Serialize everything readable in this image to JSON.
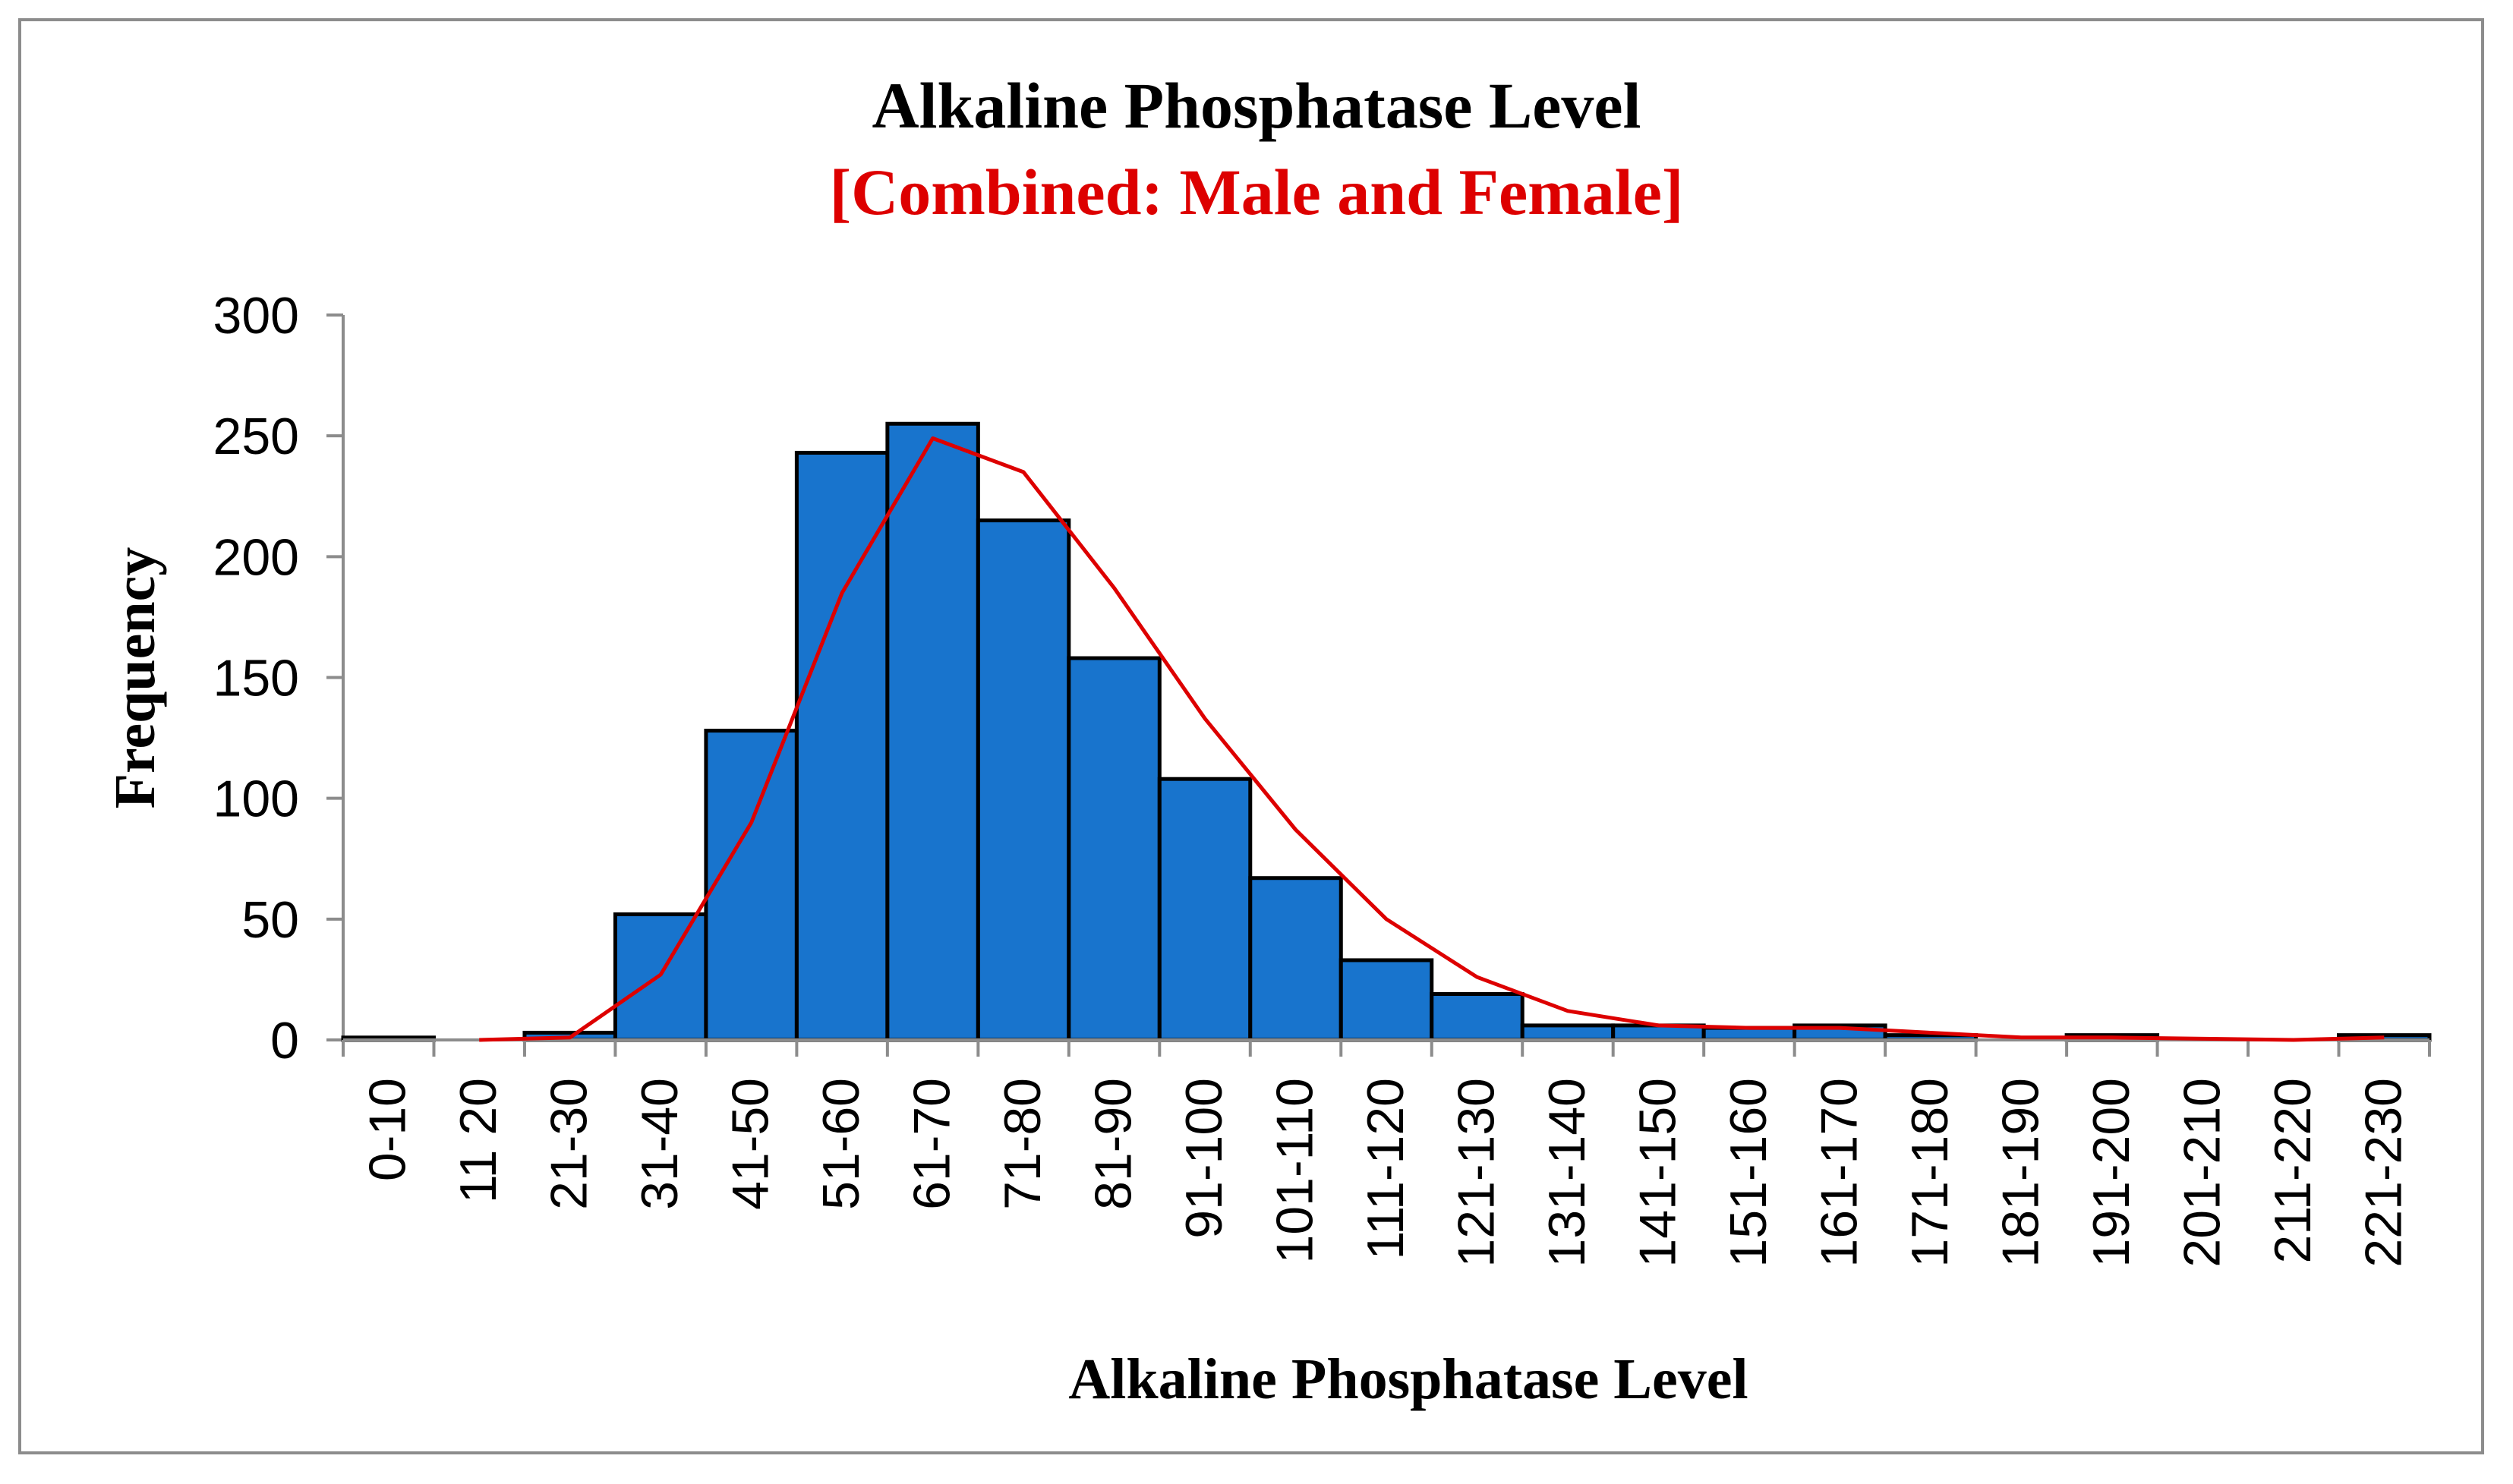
{
  "chart_data": {
    "type": "bar",
    "title": "Alkaline Phosphatase Level",
    "subtitle": "[Combined: Male and Female]",
    "xlabel": "Alkaline Phosphatase Level",
    "ylabel": "Frequency",
    "ylim": [
      0,
      300
    ],
    "yticks": [
      0,
      50,
      100,
      150,
      200,
      250,
      300
    ],
    "categories": [
      "0-10",
      "11 20",
      "21-30",
      "31-40",
      "41-50",
      "51-60",
      "61-70",
      "71-80",
      "81-90",
      "91-100",
      "101-110",
      "111-120",
      "121-130",
      "131-140",
      "141-150",
      "151-160",
      "161-170",
      "171-180",
      "181-190",
      "191-200",
      "201-210",
      "211-220",
      "221-230"
    ],
    "series": [
      {
        "type": "bar",
        "values": [
          1,
          0,
          3,
          52,
          128,
          243,
          255,
          215,
          158,
          108,
          67,
          33,
          19,
          6,
          6,
          5,
          6,
          2,
          0,
          2,
          0,
          0,
          2
        ]
      },
      {
        "type": "line",
        "values": [
          null,
          0,
          1,
          27,
          90,
          185,
          249,
          235,
          187,
          133,
          87,
          50,
          26,
          12,
          6,
          5,
          5,
          3,
          1,
          1,
          0.5,
          0,
          1
        ]
      }
    ],
    "colors": {
      "bar_fill": "#1874CD",
      "bar_edge": "#000000",
      "line": "#DD0000",
      "subtitle": "#DD0000"
    },
    "grid": false,
    "legend": "none"
  }
}
